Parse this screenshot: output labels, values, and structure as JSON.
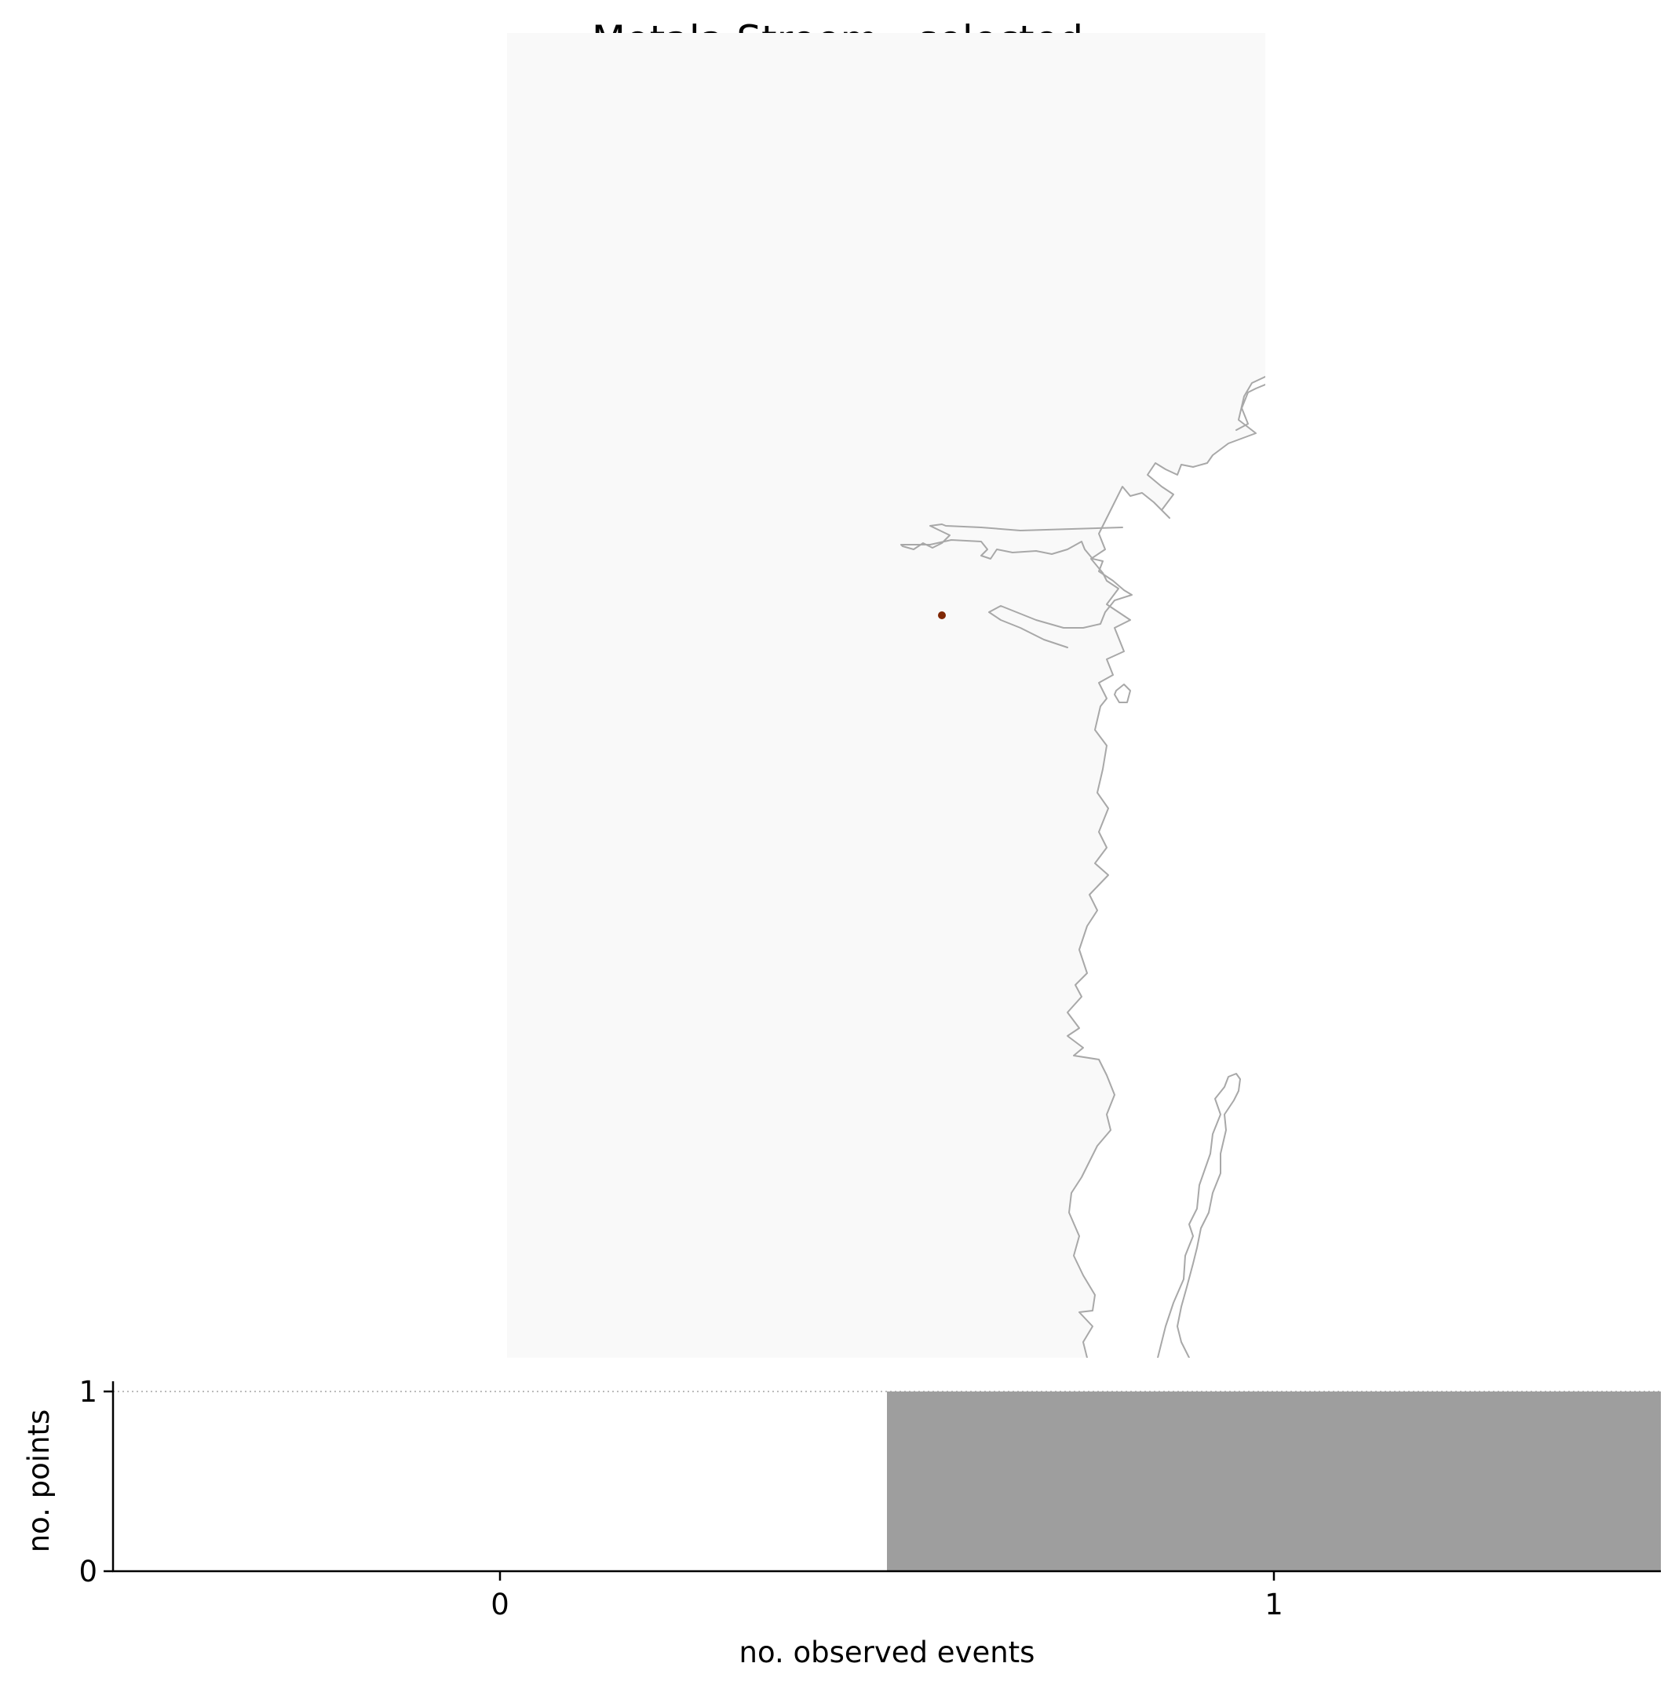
{
  "map": {
    "title": "Motala Stroem - selected",
    "colors": {
      "land": "#f9f9f9",
      "coastline": "#a8a8a8",
      "station_marker": "#7f2704"
    },
    "stations": [
      {
        "id": "selected-station"
      }
    ]
  },
  "chart_data": {
    "type": "bar",
    "categories": [
      "0",
      "1"
    ],
    "x": [
      0,
      1
    ],
    "values": [
      0,
      1
    ],
    "xlabel": "no. observed events",
    "ylabel": "no. points",
    "xlim": [
      -0.5,
      1.5
    ],
    "ylim": [
      0,
      1
    ],
    "yticks": [
      "0",
      "1"
    ],
    "xticks": [
      "0",
      "1"
    ],
    "bar_color": "#9e9e9e",
    "reference_line": {
      "y": 1,
      "style": "dotted",
      "color": "#bbbbbb"
    },
    "grid": false,
    "legend": "none"
  }
}
